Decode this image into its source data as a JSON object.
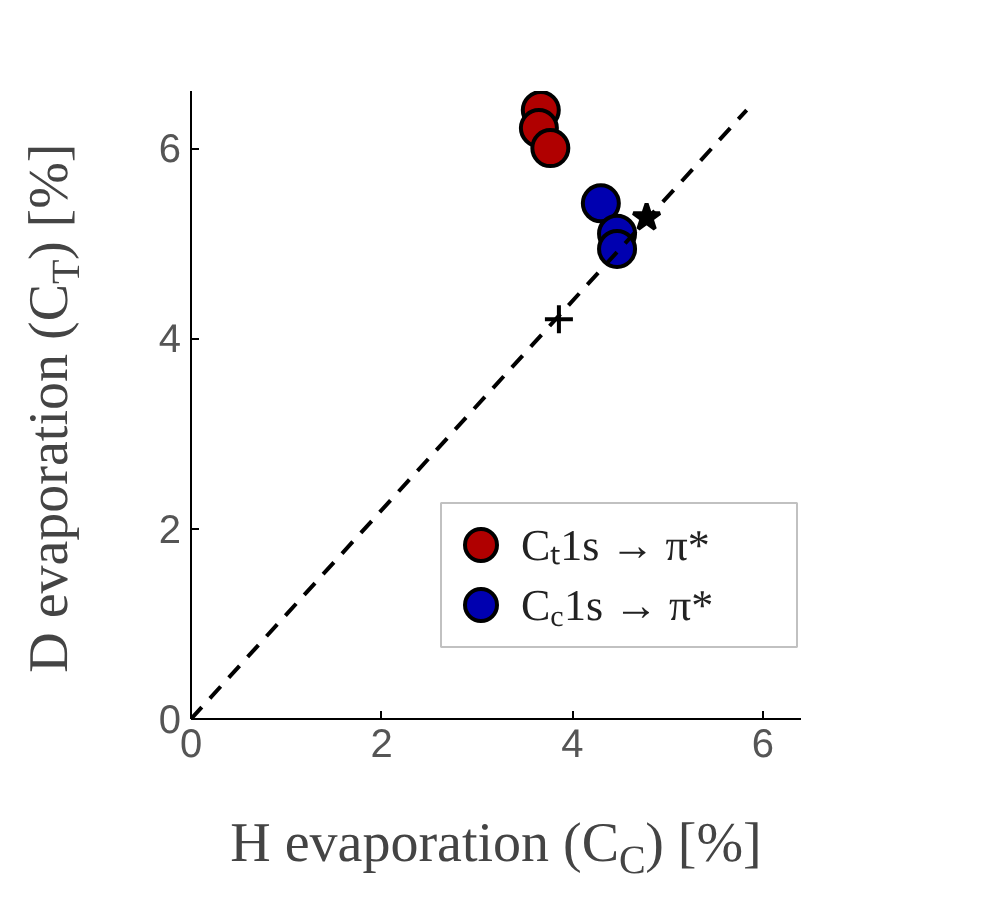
{
  "chart_data": {
    "type": "scatter",
    "xlabel": "H evaporation (C$_{C}$) [%]",
    "ylabel": "D evaporation (C$_{T}$) [%]",
    "series": [
      {
        "name": "Cₜ1s → π*",
        "color": "#b00000",
        "x": [
          3.67,
          3.65,
          3.77
        ],
        "values": [
          6.4,
          6.21,
          6.0
        ],
        "marker": "circle"
      },
      {
        "name": "C$_{c}$1s → π*",
        "color": "#0000b0",
        "x": [
          4.3,
          4.47,
          4.47
        ],
        "values": [
          5.42,
          5.1,
          4.94
        ],
        "marker": "circle"
      },
      {
        "color": "#000000",
        "x": [
          3.86
        ],
        "values": [
          4.2
        ],
        "marker": "cross"
      },
      {
        "color": "#000000",
        "x": [
          4.78
        ],
        "values": [
          5.27
        ],
        "marker": "star"
      },
      {
        "type": "line",
        "color": "#000000",
        "x": [
          0,
          5.83
        ],
        "values": [
          0,
          6.4
        ],
        "line_style": "dashed"
      }
    ],
    "xlim": [
      0,
      6.4
    ],
    "ylim": [
      0,
      6.6
    ],
    "xticks": [
      0,
      2,
      4,
      6
    ],
    "yticks": [
      0,
      2,
      4,
      6
    ],
    "grid": false,
    "legend": "bottom right"
  }
}
